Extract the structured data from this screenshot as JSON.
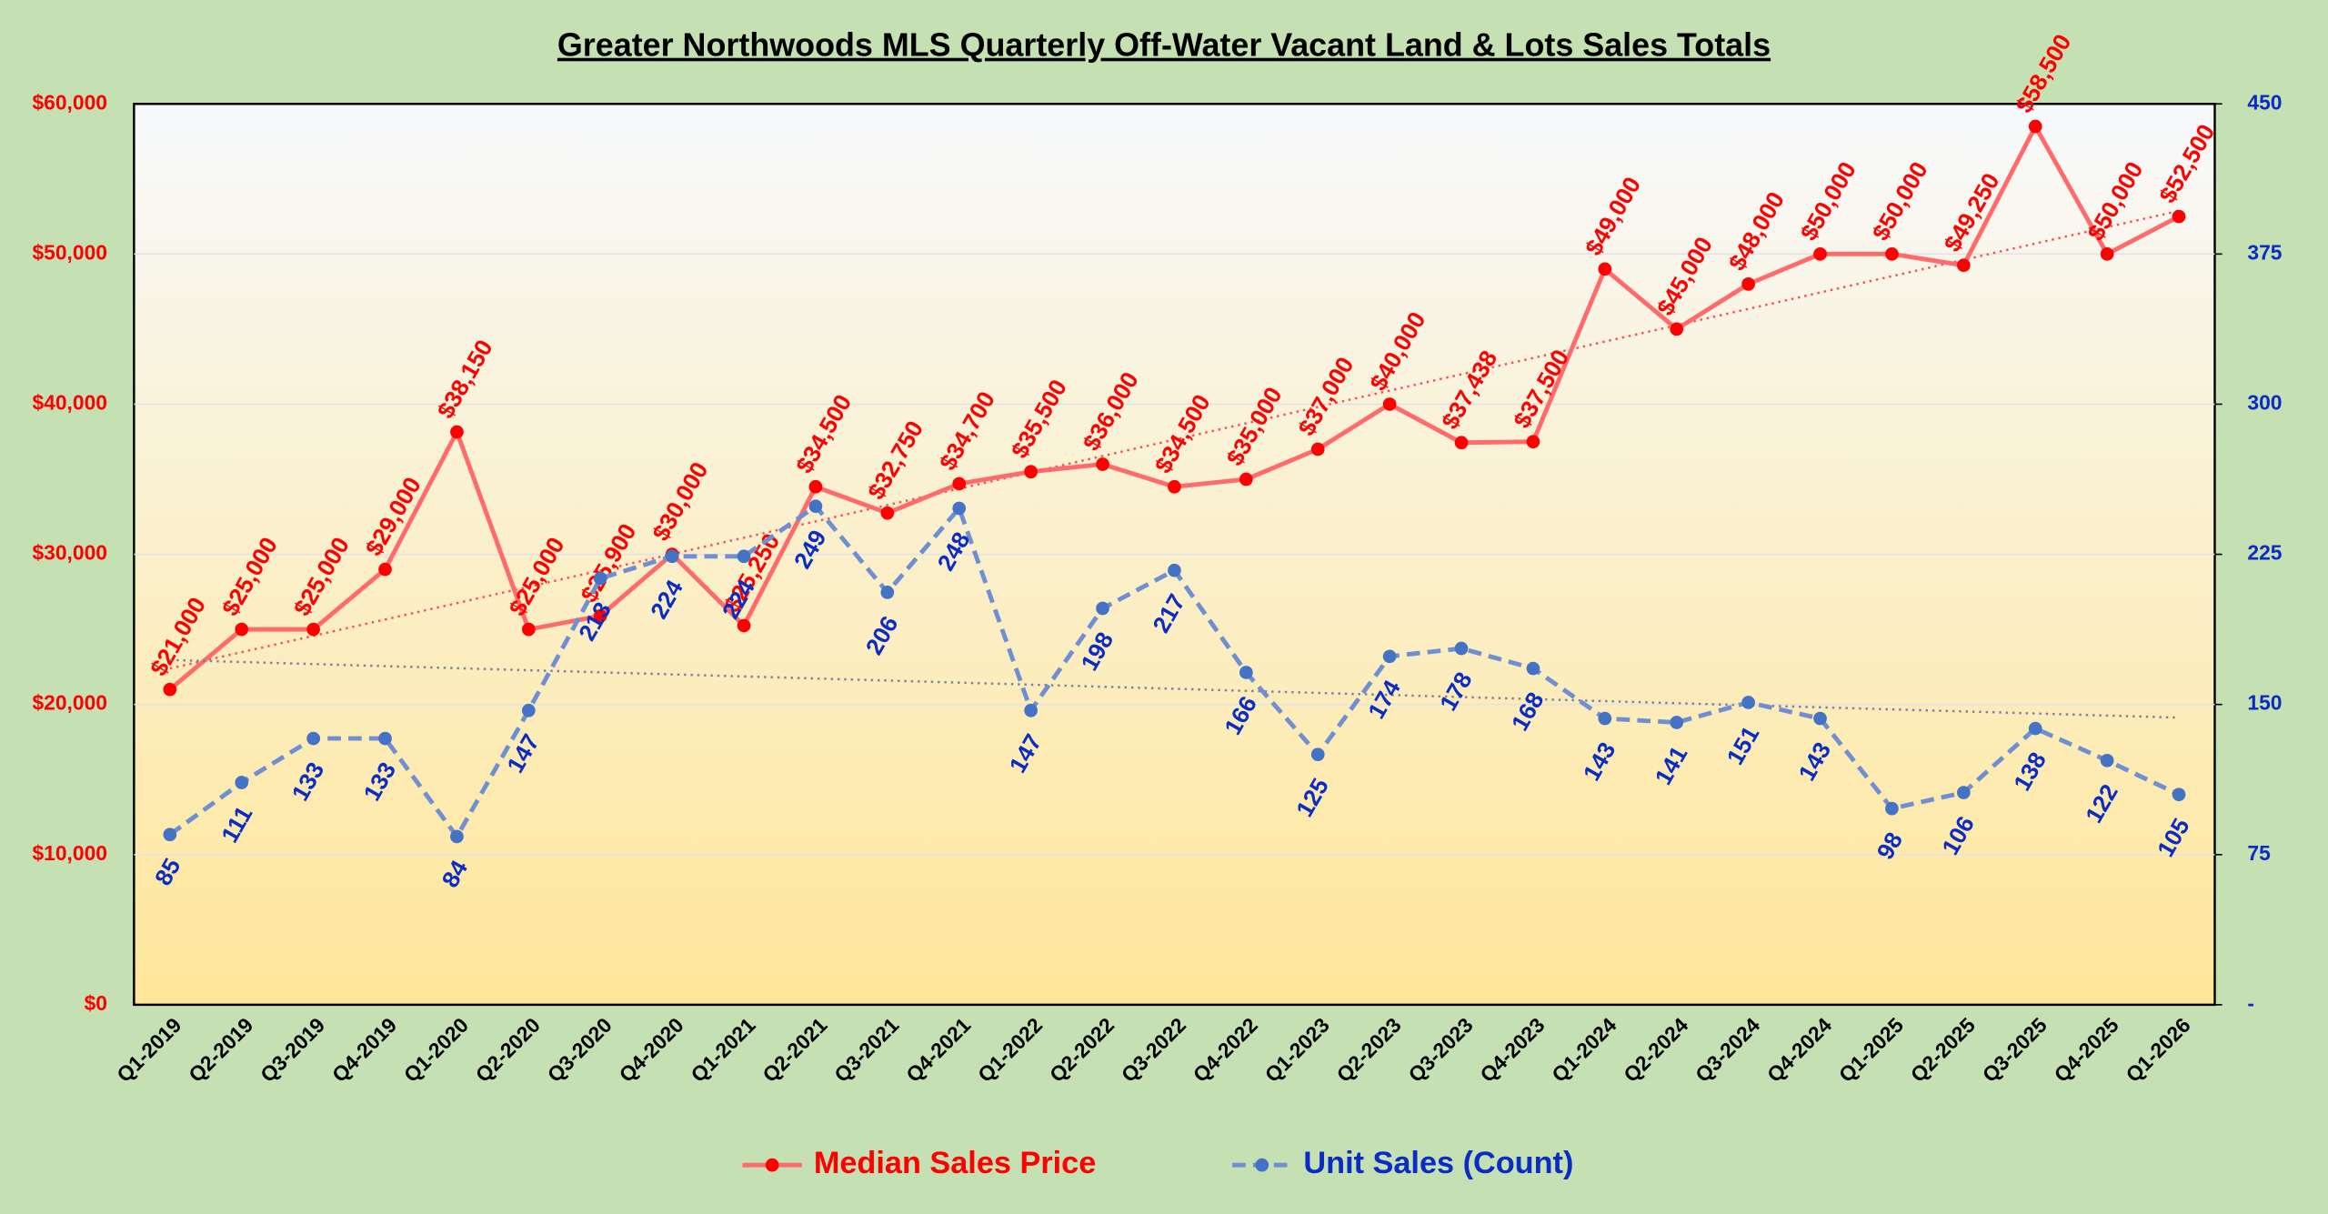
{
  "chart_data": {
    "type": "line",
    "title": "Greater Northwoods MLS Quarterly Off-Water Vacant Land & Lots Sales Totals",
    "categories": [
      "Q1-2019",
      "Q2-2019",
      "Q3-2019",
      "Q4-2019",
      "Q1-2020",
      "Q2-2020",
      "Q3-2020",
      "Q4-2020",
      "Q1-2021",
      "Q2-2021",
      "Q3-2021",
      "Q4-2021",
      "Q1-2022",
      "Q2-2022",
      "Q3-2022",
      "Q4-2022",
      "Q1-2023",
      "Q2-2023",
      "Q3-2023",
      "Q4-2023",
      "Q1-2024",
      "Q2-2024",
      "Q3-2024",
      "Q4-2024",
      "Q1-2025",
      "Q2-2025",
      "Q3-2025",
      "Q4-2025",
      "Q1-2026"
    ],
    "series": [
      {
        "name": "Median Sales Price",
        "color": "#ff6b6b",
        "marker_color": "#ff0000",
        "label_color": "#ff0000",
        "dash": false,
        "trendline_color": "#ff4d4d",
        "values": [
          21000,
          25000,
          25000,
          29000,
          38150,
          25000,
          25900,
          30000,
          25250,
          34500,
          32750,
          34700,
          35500,
          36000,
          34500,
          35000,
          37000,
          40000,
          37438,
          37500,
          49000,
          45000,
          48000,
          50000,
          50000,
          49250,
          58500,
          50000,
          52500
        ],
        "value_labels": [
          "$21,000",
          "$25,000",
          "$25,000",
          "$29,000",
          "$38,150",
          "$25,000",
          "$25,900",
          "$30,000",
          "$25,250",
          "$34,500",
          "$32,750",
          "$34,700",
          "$35,500",
          "$36,000",
          "$34,500",
          "$35,000",
          "$37,000",
          "$40,000",
          "$37,438",
          "$37,500",
          "$49,000",
          "$45,000",
          "$48,000",
          "$50,000",
          "$50,000",
          "$49,250",
          "$58,500",
          "$50,000",
          "$52,500"
        ]
      },
      {
        "name": "Unit Sales (Count)",
        "color": "#6f8fd2",
        "marker_color": "#4472c4",
        "label_color": "#0a2bc4",
        "dash": true,
        "trendline_color": "#7f7f9f",
        "axis": "y2",
        "values": [
          85,
          111,
          133,
          133,
          84,
          147,
          213,
          224,
          224,
          249,
          206,
          248,
          147,
          198,
          217,
          166,
          125,
          174,
          178,
          168,
          143,
          141,
          151,
          143,
          98,
          106,
          138,
          122,
          105
        ]
      }
    ],
    "ylim": [
      0,
      60000
    ],
    "yticks": [
      {
        "value": 0,
        "label": "$0"
      },
      {
        "value": 10000,
        "label": "$10,000"
      },
      {
        "value": 20000,
        "label": "$20,000"
      },
      {
        "value": 30000,
        "label": "$30,000"
      },
      {
        "value": 40000,
        "label": "$40,000"
      },
      {
        "value": 50000,
        "label": "$50,000"
      },
      {
        "value": 60000,
        "label": "$60,000"
      }
    ],
    "y2lim": [
      0,
      450
    ],
    "y2ticks": [
      {
        "value": 0,
        "label": "-"
      },
      75,
      150,
      225,
      300,
      375,
      450
    ],
    "grid": true,
    "trendline": true,
    "legend": "bottom"
  }
}
